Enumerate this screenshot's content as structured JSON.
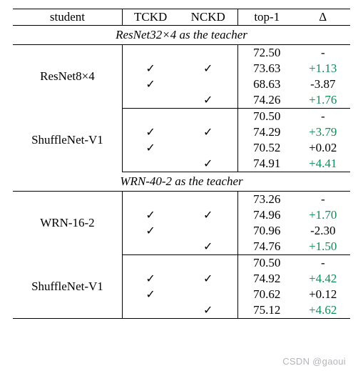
{
  "colors": {
    "positive": "#0f8c5a",
    "negative": "#000000",
    "rule": "#000000",
    "background": "#ffffff"
  },
  "checkmark": "✓",
  "dash": "-",
  "header": {
    "student": "student",
    "tckd": "TCKD",
    "nckd": "NCKD",
    "top1": "top-1",
    "delta": "Δ"
  },
  "sections": [
    {
      "caption": "ResNet32×4 as the teacher",
      "groups": [
        {
          "student": "ResNet8×4",
          "rows": [
            {
              "tckd": false,
              "nckd": false,
              "top1": "72.50",
              "delta": "-",
              "sign": "none"
            },
            {
              "tckd": true,
              "nckd": true,
              "top1": "73.63",
              "delta": "+1.13",
              "sign": "pos"
            },
            {
              "tckd": true,
              "nckd": false,
              "top1": "68.63",
              "delta": "-3.87",
              "sign": "neg"
            },
            {
              "tckd": false,
              "nckd": true,
              "top1": "74.26",
              "delta": "+1.76",
              "sign": "pos"
            }
          ]
        },
        {
          "student": "ShuffleNet-V1",
          "rows": [
            {
              "tckd": false,
              "nckd": false,
              "top1": "70.50",
              "delta": "-",
              "sign": "none"
            },
            {
              "tckd": true,
              "nckd": true,
              "top1": "74.29",
              "delta": "+3.79",
              "sign": "pos"
            },
            {
              "tckd": true,
              "nckd": false,
              "top1": "70.52",
              "delta": "+0.02",
              "sign": "neg"
            },
            {
              "tckd": false,
              "nckd": true,
              "top1": "74.91",
              "delta": "+4.41",
              "sign": "pos"
            }
          ]
        }
      ]
    },
    {
      "caption": "WRN-40-2 as the teacher",
      "groups": [
        {
          "student": "WRN-16-2",
          "rows": [
            {
              "tckd": false,
              "nckd": false,
              "top1": "73.26",
              "delta": "-",
              "sign": "none"
            },
            {
              "tckd": true,
              "nckd": true,
              "top1": "74.96",
              "delta": "+1.70",
              "sign": "pos"
            },
            {
              "tckd": true,
              "nckd": false,
              "top1": "70.96",
              "delta": "-2.30",
              "sign": "neg"
            },
            {
              "tckd": false,
              "nckd": true,
              "top1": "74.76",
              "delta": "+1.50",
              "sign": "pos"
            }
          ]
        },
        {
          "student": "ShuffleNet-V1",
          "rows": [
            {
              "tckd": false,
              "nckd": false,
              "top1": "70.50",
              "delta": "-",
              "sign": "none"
            },
            {
              "tckd": true,
              "nckd": true,
              "top1": "74.92",
              "delta": "+4.42",
              "sign": "pos"
            },
            {
              "tckd": true,
              "nckd": false,
              "top1": "70.62",
              "delta": "+0.12",
              "sign": "neg"
            },
            {
              "tckd": false,
              "nckd": true,
              "top1": "75.12",
              "delta": "+4.62",
              "sign": "pos"
            }
          ]
        }
      ]
    }
  ],
  "watermark": "CSDN @gaoui"
}
